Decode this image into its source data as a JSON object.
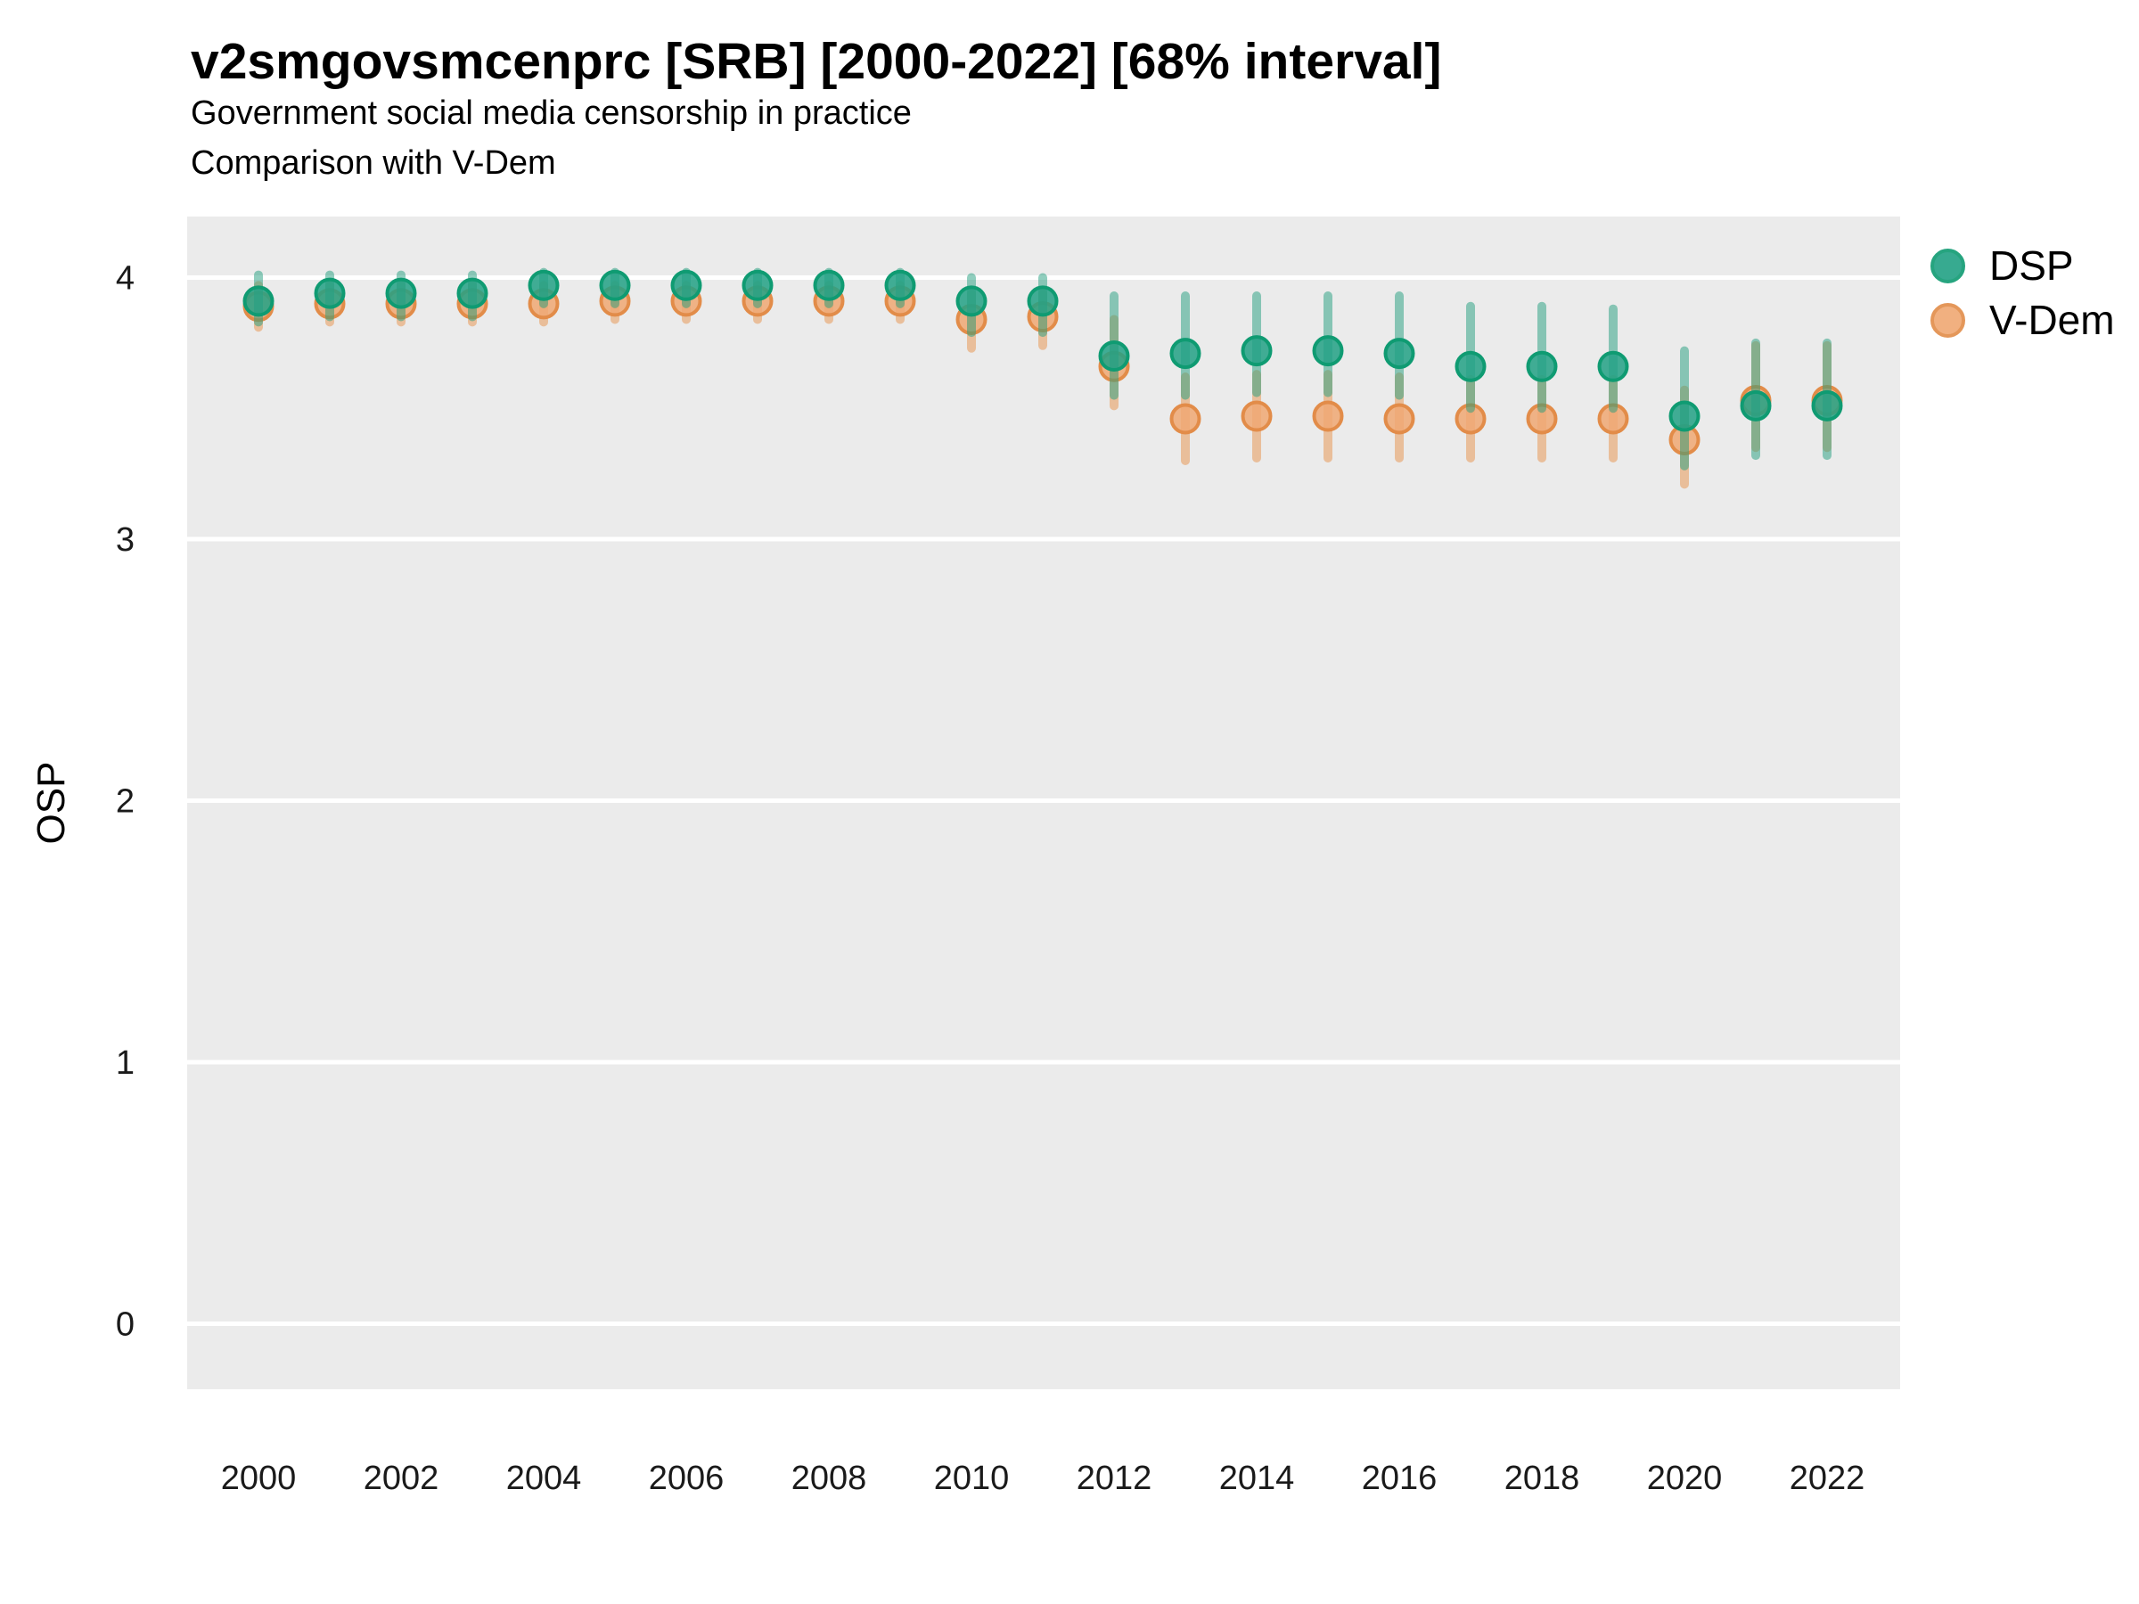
{
  "header": {
    "title": "v2smgovsmcenprc [SRB] [2000-2022] [68% interval]",
    "subtitle1": "Government social media censorship in practice",
    "subtitle2": "Comparison with V-Dem"
  },
  "chart_data": {
    "type": "scatter",
    "title": "v2smgovsmcenprc [SRB] [2000-2022] [68% interval]",
    "subtitle": [
      "Government social media censorship in practice",
      "Comparison with V-Dem"
    ],
    "interval": "68%",
    "xlabel": "",
    "ylabel": "OSP",
    "x": [
      2000,
      2001,
      2002,
      2003,
      2004,
      2005,
      2006,
      2007,
      2008,
      2009,
      2010,
      2011,
      2012,
      2013,
      2014,
      2015,
      2016,
      2017,
      2018,
      2019,
      2020,
      2021,
      2022
    ],
    "x_tick_labels": [
      2000,
      2002,
      2004,
      2006,
      2008,
      2010,
      2012,
      2014,
      2016,
      2018,
      2020,
      2022
    ],
    "y_ticks": [
      0,
      1,
      2,
      3,
      4
    ],
    "ylim": [
      -0.27,
      4.23
    ],
    "grid": "major-horizontal-only",
    "legend_position": "right",
    "panel_bg": "#ebebeb",
    "grid_color": "#ffffff",
    "series": [
      {
        "name": "DSP",
        "color": "#22a185",
        "stroke": "#0f9b72",
        "bar_color": "rgba(34,158,126,0.5)",
        "values": [
          3.91,
          3.94,
          3.94,
          3.94,
          3.97,
          3.97,
          3.97,
          3.97,
          3.97,
          3.97,
          3.91,
          3.91,
          3.7,
          3.71,
          3.72,
          3.72,
          3.71,
          3.66,
          3.66,
          3.66,
          3.47,
          3.51,
          3.51
        ],
        "lo": [
          3.83,
          3.85,
          3.85,
          3.85,
          3.9,
          3.9,
          3.9,
          3.9,
          3.9,
          3.9,
          3.79,
          3.79,
          3.55,
          3.55,
          3.56,
          3.56,
          3.55,
          3.5,
          3.5,
          3.5,
          3.28,
          3.32,
          3.32
        ],
        "hi": [
          4.01,
          4.01,
          4.01,
          4.01,
          4.02,
          4.02,
          4.02,
          4.02,
          4.02,
          4.02,
          4.0,
          4.0,
          3.93,
          3.93,
          3.93,
          3.93,
          3.93,
          3.89,
          3.89,
          3.88,
          3.72,
          3.75,
          3.75
        ]
      },
      {
        "name": "V-Dem",
        "color": "#f0a873",
        "stroke": "#e28c49",
        "bar_color": "rgba(231,146,74,0.5)",
        "values": [
          3.89,
          3.9,
          3.9,
          3.9,
          3.9,
          3.91,
          3.91,
          3.91,
          3.91,
          3.91,
          3.84,
          3.85,
          3.66,
          3.46,
          3.47,
          3.47,
          3.46,
          3.46,
          3.46,
          3.46,
          3.38,
          3.53,
          3.53
        ],
        "lo": [
          3.81,
          3.83,
          3.83,
          3.83,
          3.83,
          3.84,
          3.84,
          3.84,
          3.84,
          3.84,
          3.73,
          3.74,
          3.51,
          3.3,
          3.31,
          3.31,
          3.31,
          3.31,
          3.31,
          3.31,
          3.21,
          3.35,
          3.35
        ],
        "hi": [
          3.97,
          3.97,
          3.97,
          3.97,
          3.97,
          3.97,
          3.97,
          3.97,
          3.97,
          3.97,
          3.94,
          3.94,
          3.84,
          3.62,
          3.63,
          3.63,
          3.62,
          3.61,
          3.61,
          3.61,
          3.57,
          3.74,
          3.74
        ]
      }
    ]
  }
}
